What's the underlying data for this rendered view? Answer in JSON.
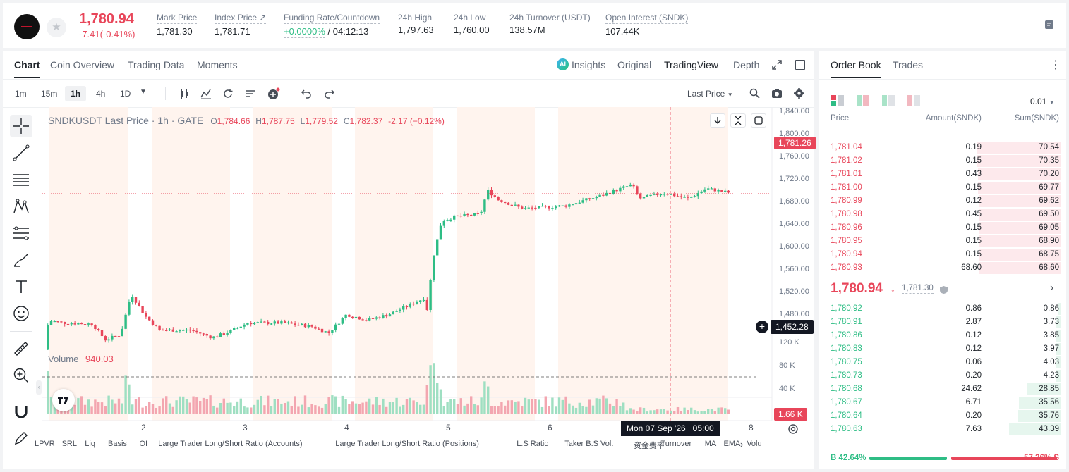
{
  "ticker": {
    "price": "1,780.94",
    "change": "-7.41(-0.41%)",
    "stats": [
      {
        "label": "Mark Price",
        "value": "1,781.30",
        "x": 218
      },
      {
        "label": "Index Price ↗",
        "value": "1,781.71",
        "x": 300
      },
      {
        "label": "Funding Rate/Countdown",
        "value": "",
        "x": 398
      },
      {
        "label": "24h High",
        "value": "1,797.63",
        "x": 560
      },
      {
        "label": "24h Low",
        "value": "1,760.00",
        "x": 639
      },
      {
        "label": "24h Turnover (USDT)",
        "value": "138.57M",
        "x": 718
      },
      {
        "label": "Open Interest (SNDK)",
        "value": "107.44K",
        "x": 854
      }
    ],
    "funding_rate": "+0.0000%",
    "countdown": "/ 04:12:13"
  },
  "chart_tabs": [
    "Chart",
    "Coin Overview",
    "Trading Data",
    "Moments"
  ],
  "view_tabs": {
    "insights": "Insights",
    "original": "Original",
    "tradingview": "TradingView",
    "depth": "Depth"
  },
  "timeframes": [
    "1m",
    "15m",
    "1h",
    "4h",
    "1D"
  ],
  "price_type": "Last Price",
  "legend": {
    "symbol": "SNDKUSDT Last Price · 1h · GATE",
    "o_lbl": "O",
    "o": "1,784.66",
    "h_lbl": "H",
    "h": "1,787.75",
    "l_lbl": "L",
    "l": "1,779.52",
    "c_lbl": "C",
    "c": "1,782.37",
    "chg": "-2.17 (−0.12%)"
  },
  "volume": {
    "label": "Volume",
    "value": "940.03"
  },
  "price_axis": [
    "1,840.00",
    "1,800.00",
    "1,760.00",
    "1,720.00",
    "1,680.00",
    "1,640.00",
    "1,600.00",
    "1,560.00",
    "1,520.00",
    "1,480.00"
  ],
  "vol_axis": [
    "120 K",
    "80 K",
    "40 K"
  ],
  "time_axis": [
    "2",
    "3",
    "4",
    "5",
    "6",
    "8"
  ],
  "current_price_label": "1,781.26",
  "crosshair_price": "1,452.28",
  "crosshair_time": "Mon 07 Sep '26   05:00",
  "vol_current": "1.66 K",
  "indicators": [
    "LPVR",
    "SRL",
    "Liq",
    "Basis",
    "OI",
    "Large Trader Long/Short Ratio (Accounts)",
    "Large Trader Long/Short Ratio (Positions)",
    "L.S Ratio",
    "Taker B.S Vol.",
    "资金费率",
    "Turnover",
    "MA",
    "EMA",
    "Volu"
  ],
  "orderbook": {
    "tabs": [
      "Order Book",
      "Trades"
    ],
    "precision": "0.01",
    "headers": [
      "Price",
      "Amount(SNDK)",
      "Sum(SNDK)"
    ],
    "asks": [
      {
        "price": "1,781.04",
        "amount": "0.19",
        "sum": "70.54"
      },
      {
        "price": "1,781.02",
        "amount": "0.15",
        "sum": "70.35"
      },
      {
        "price": "1,781.01",
        "amount": "0.43",
        "sum": "70.20"
      },
      {
        "price": "1,781.00",
        "amount": "0.15",
        "sum": "69.77"
      },
      {
        "price": "1,780.99",
        "amount": "0.12",
        "sum": "69.62"
      },
      {
        "price": "1,780.98",
        "amount": "0.45",
        "sum": "69.50"
      },
      {
        "price": "1,780.96",
        "amount": "0.15",
        "sum": "69.05"
      },
      {
        "price": "1,780.95",
        "amount": "0.15",
        "sum": "68.90"
      },
      {
        "price": "1,780.94",
        "amount": "0.15",
        "sum": "68.75"
      },
      {
        "price": "1,780.93",
        "amount": "68.60",
        "sum": "68.60"
      }
    ],
    "last_price": "1,780.94",
    "mark_price": "1,781.30",
    "bids": [
      {
        "price": "1,780.92",
        "amount": "0.86",
        "sum": "0.86"
      },
      {
        "price": "1,780.91",
        "amount": "2.87",
        "sum": "3.73"
      },
      {
        "price": "1,780.86",
        "amount": "0.12",
        "sum": "3.85"
      },
      {
        "price": "1,780.83",
        "amount": "0.12",
        "sum": "3.97"
      },
      {
        "price": "1,780.75",
        "amount": "0.06",
        "sum": "4.03"
      },
      {
        "price": "1,780.73",
        "amount": "0.20",
        "sum": "4.23"
      },
      {
        "price": "1,780.68",
        "amount": "24.62",
        "sum": "28.85"
      },
      {
        "price": "1,780.67",
        "amount": "6.71",
        "sum": "35.56"
      },
      {
        "price": "1,780.64",
        "amount": "0.20",
        "sum": "35.76"
      },
      {
        "price": "1,780.63",
        "amount": "7.63",
        "sum": "43.39"
      }
    ],
    "buy_ratio": "B  42.64%",
    "sell_ratio": "57.36%  S",
    "buy_pct": 42.64
  },
  "colors": {
    "up": "#2ebd85",
    "down": "#e8465a",
    "accent": "#1e2329"
  }
}
